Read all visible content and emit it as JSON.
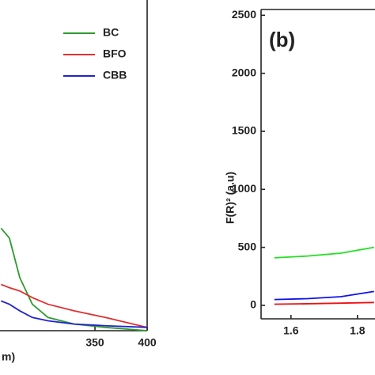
{
  "chart_data": [
    {
      "type": "line",
      "xlabel": "m)",
      "x": [
        260,
        268,
        278,
        290,
        305,
        330,
        360,
        400
      ],
      "series": [
        {
          "name": "BC",
          "color": "#2e9a2e",
          "values": [
            0.31,
            0.28,
            0.16,
            0.08,
            0.04,
            0.02,
            0.01,
            0.0
          ]
        },
        {
          "name": "BFO",
          "color": "#e03030",
          "values": [
            0.14,
            0.13,
            0.12,
            0.1,
            0.08,
            0.06,
            0.04,
            0.01
          ]
        },
        {
          "name": "CBB",
          "color": "#2222d0",
          "values": [
            0.09,
            0.08,
            0.06,
            0.04,
            0.03,
            0.02,
            0.015,
            0.01
          ]
        }
      ],
      "xlim": [
        259,
        400
      ],
      "xticks": [
        350,
        400
      ],
      "ylim": [
        0,
        1
      ],
      "legend": "upper right"
    },
    {
      "type": "line",
      "title": "(b)",
      "ylabel": "F(R)² (a.u)",
      "x": [
        1.55,
        1.65,
        1.75,
        1.85
      ],
      "series": [
        {
          "color": "#22e022",
          "values": [
            410,
            425,
            450,
            500
          ]
        },
        {
          "color": "#ee1111",
          "values": [
            10,
            14,
            19,
            25
          ]
        },
        {
          "color": "#1111ee",
          "values": [
            50,
            58,
            75,
            120
          ]
        }
      ],
      "xlim": [
        1.51,
        1.85
      ],
      "xticks": [
        1.6,
        1.8
      ],
      "ylim": [
        -116,
        2550
      ],
      "yticks": [
        0,
        500,
        1000,
        1500,
        2000,
        2500
      ]
    }
  ]
}
